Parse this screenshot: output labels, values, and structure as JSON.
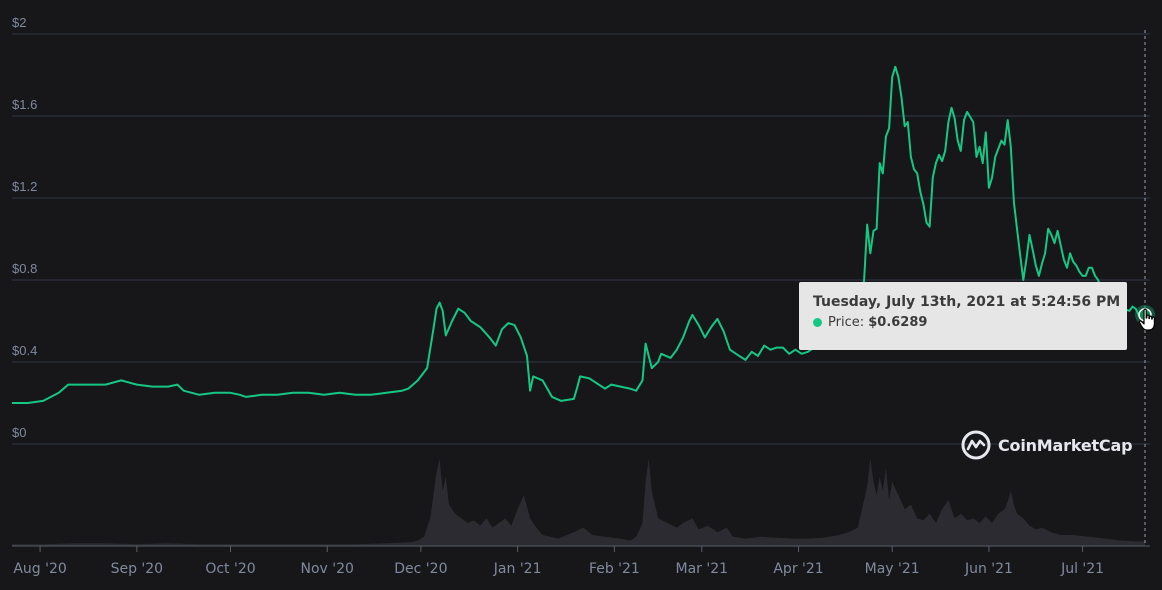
{
  "chart_data": {
    "type": "line",
    "title": "",
    "xlabel": "",
    "ylabel": "",
    "ylim": [
      0,
      2
    ],
    "y_ticks": [
      "$0",
      "$0.4",
      "$0.8",
      "$1.2",
      "$1.6",
      "$2"
    ],
    "y_tick_values": [
      0,
      0.4,
      0.8,
      1.2,
      1.6,
      2
    ],
    "x_ticks": [
      "Aug '20",
      "Sep '20",
      "Oct '20",
      "Nov '20",
      "Dec '20",
      "Jan '21",
      "Feb '21",
      "Mar '21",
      "Apr '21",
      "May '21",
      "Jun '21",
      "Jul '21"
    ],
    "grid": true,
    "series": [
      {
        "color": "#16c784",
        "points": [
          [
            0,
            0.2
          ],
          [
            5,
            0.2
          ],
          [
            10,
            0.21
          ],
          [
            15,
            0.25
          ],
          [
            18,
            0.29
          ],
          [
            25,
            0.29
          ],
          [
            30,
            0.29
          ],
          [
            35,
            0.31
          ],
          [
            40,
            0.29
          ],
          [
            45,
            0.28
          ],
          [
            50,
            0.28
          ],
          [
            53,
            0.29
          ],
          [
            55,
            0.26
          ],
          [
            60,
            0.24
          ],
          [
            65,
            0.25
          ],
          [
            70,
            0.25
          ],
          [
            73,
            0.24
          ],
          [
            75,
            0.23
          ],
          [
            80,
            0.24
          ],
          [
            85,
            0.24
          ],
          [
            90,
            0.25
          ],
          [
            95,
            0.25
          ],
          [
            100,
            0.24
          ],
          [
            105,
            0.25
          ],
          [
            110,
            0.24
          ],
          [
            115,
            0.24
          ],
          [
            120,
            0.25
          ],
          [
            125,
            0.26
          ],
          [
            127,
            0.27
          ],
          [
            130,
            0.31
          ],
          [
            133,
            0.37
          ],
          [
            135,
            0.56
          ],
          [
            136,
            0.66
          ],
          [
            137,
            0.69
          ],
          [
            138,
            0.65
          ],
          [
            139,
            0.53
          ],
          [
            141,
            0.6
          ],
          [
            143,
            0.66
          ],
          [
            145,
            0.64
          ],
          [
            147,
            0.6
          ],
          [
            150,
            0.57
          ],
          [
            153,
            0.52
          ],
          [
            155,
            0.48
          ],
          [
            157,
            0.56
          ],
          [
            159,
            0.59
          ],
          [
            161,
            0.58
          ],
          [
            163,
            0.52
          ],
          [
            165,
            0.43
          ],
          [
            166,
            0.26
          ],
          [
            167,
            0.33
          ],
          [
            170,
            0.31
          ],
          [
            173,
            0.23
          ],
          [
            176,
            0.21
          ],
          [
            180,
            0.22
          ],
          [
            181,
            0.27
          ],
          [
            182,
            0.33
          ],
          [
            185,
            0.32
          ],
          [
            188,
            0.29
          ],
          [
            190,
            0.27
          ],
          [
            192,
            0.29
          ],
          [
            195,
            0.28
          ],
          [
            198,
            0.27
          ],
          [
            200,
            0.26
          ],
          [
            202,
            0.31
          ],
          [
            203,
            0.49
          ],
          [
            205,
            0.37
          ],
          [
            207,
            0.4
          ],
          [
            208,
            0.44
          ],
          [
            211,
            0.42
          ],
          [
            213,
            0.46
          ],
          [
            215,
            0.52
          ],
          [
            217,
            0.6
          ],
          [
            218,
            0.63
          ],
          [
            220,
            0.58
          ],
          [
            222,
            0.52
          ],
          [
            224,
            0.57
          ],
          [
            226,
            0.61
          ],
          [
            228,
            0.55
          ],
          [
            230,
            0.46
          ],
          [
            233,
            0.43
          ],
          [
            235,
            0.41
          ],
          [
            237,
            0.45
          ],
          [
            239,
            0.43
          ],
          [
            241,
            0.48
          ],
          [
            243,
            0.46
          ],
          [
            245,
            0.47
          ],
          [
            247,
            0.47
          ],
          [
            249,
            0.44
          ],
          [
            251,
            0.46
          ],
          [
            253,
            0.44
          ],
          [
            255,
            0.45
          ],
          [
            257,
            0.47
          ],
          [
            260,
            0.47
          ],
          [
            262,
            0.53
          ],
          [
            264,
            0.55
          ],
          [
            266,
            0.51
          ],
          [
            267,
            0.49
          ],
          [
            269,
            0.56
          ],
          [
            271,
            0.56
          ],
          [
            273,
            0.8
          ],
          [
            274,
            1.07
          ],
          [
            275,
            0.93
          ],
          [
            276,
            1.04
          ],
          [
            277,
            1.05
          ],
          [
            278,
            1.37
          ],
          [
            279,
            1.32
          ],
          [
            280,
            1.5
          ],
          [
            281,
            1.54
          ],
          [
            282,
            1.79
          ],
          [
            283,
            1.84
          ],
          [
            284,
            1.79
          ],
          [
            285,
            1.69
          ],
          [
            286,
            1.55
          ],
          [
            287,
            1.57
          ],
          [
            288,
            1.4
          ],
          [
            289,
            1.34
          ],
          [
            290,
            1.32
          ],
          [
            291,
            1.23
          ],
          [
            292,
            1.17
          ],
          [
            293,
            1.08
          ],
          [
            294,
            1.06
          ],
          [
            295,
            1.3
          ],
          [
            296,
            1.37
          ],
          [
            297,
            1.41
          ],
          [
            298,
            1.38
          ],
          [
            299,
            1.43
          ],
          [
            300,
            1.57
          ],
          [
            301,
            1.64
          ],
          [
            302,
            1.59
          ],
          [
            303,
            1.48
          ],
          [
            304,
            1.43
          ],
          [
            305,
            1.58
          ],
          [
            306,
            1.62
          ],
          [
            308,
            1.57
          ],
          [
            309,
            1.4
          ],
          [
            310,
            1.45
          ],
          [
            311,
            1.37
          ],
          [
            312,
            1.52
          ],
          [
            313,
            1.25
          ],
          [
            314,
            1.3
          ],
          [
            315,
            1.4
          ],
          [
            317,
            1.48
          ],
          [
            318,
            1.46
          ],
          [
            319,
            1.58
          ],
          [
            320,
            1.45
          ],
          [
            321,
            1.18
          ],
          [
            322,
            1.05
          ],
          [
            323,
            0.92
          ],
          [
            324,
            0.8
          ],
          [
            325,
            0.9
          ],
          [
            326,
            1.02
          ],
          [
            327,
            0.95
          ],
          [
            328,
            0.87
          ],
          [
            329,
            0.82
          ],
          [
            330,
            0.88
          ],
          [
            331,
            0.93
          ],
          [
            332,
            1.05
          ],
          [
            333,
            1.02
          ],
          [
            334,
            0.98
          ],
          [
            335,
            1.04
          ],
          [
            336,
            0.97
          ],
          [
            337,
            0.9
          ],
          [
            338,
            0.86
          ],
          [
            339,
            0.93
          ],
          [
            340,
            0.89
          ],
          [
            341,
            0.87
          ],
          [
            342,
            0.84
          ],
          [
            343,
            0.82
          ],
          [
            344,
            0.82
          ],
          [
            345,
            0.86
          ],
          [
            346,
            0.86
          ],
          [
            347,
            0.82
          ],
          [
            348,
            0.8
          ],
          [
            349,
            0.74
          ],
          [
            350,
            0.72
          ],
          [
            351,
            0.66
          ],
          [
            352,
            0.6
          ],
          [
            353,
            0.55
          ],
          [
            354,
            0.64
          ],
          [
            356,
            0.66
          ],
          [
            358,
            0.65
          ],
          [
            359,
            0.67
          ],
          [
            360,
            0.66
          ],
          [
            361,
            0.63
          ],
          [
            362,
            0.62
          ],
          [
            363,
            0.63
          ]
        ]
      }
    ],
    "volume": {
      "color": "#2b2b31",
      "points": [
        [
          0,
          0.02
        ],
        [
          10,
          0.02
        ],
        [
          20,
          0.03
        ],
        [
          30,
          0.03
        ],
        [
          40,
          0.02
        ],
        [
          50,
          0.03
        ],
        [
          60,
          0.02
        ],
        [
          70,
          0.02
        ],
        [
          80,
          0.02
        ],
        [
          90,
          0.02
        ],
        [
          100,
          0.02
        ],
        [
          110,
          0.02
        ],
        [
          120,
          0.03
        ],
        [
          128,
          0.04
        ],
        [
          130,
          0.06
        ],
        [
          132,
          0.1
        ],
        [
          134,
          0.3
        ],
        [
          135,
          0.55
        ],
        [
          136,
          0.8
        ],
        [
          137,
          0.95
        ],
        [
          138,
          0.6
        ],
        [
          139,
          0.75
        ],
        [
          140,
          0.45
        ],
        [
          142,
          0.35
        ],
        [
          144,
          0.3
        ],
        [
          146,
          0.25
        ],
        [
          148,
          0.28
        ],
        [
          150,
          0.22
        ],
        [
          152,
          0.3
        ],
        [
          154,
          0.2
        ],
        [
          156,
          0.25
        ],
        [
          158,
          0.3
        ],
        [
          160,
          0.22
        ],
        [
          162,
          0.4
        ],
        [
          164,
          0.55
        ],
        [
          166,
          0.3
        ],
        [
          168,
          0.2
        ],
        [
          170,
          0.12
        ],
        [
          175,
          0.08
        ],
        [
          180,
          0.15
        ],
        [
          183,
          0.2
        ],
        [
          186,
          0.12
        ],
        [
          190,
          0.1
        ],
        [
          195,
          0.08
        ],
        [
          198,
          0.06
        ],
        [
          200,
          0.1
        ],
        [
          202,
          0.25
        ],
        [
          203,
          0.7
        ],
        [
          204,
          0.95
        ],
        [
          205,
          0.6
        ],
        [
          207,
          0.3
        ],
        [
          210,
          0.25
        ],
        [
          213,
          0.2
        ],
        [
          215,
          0.25
        ],
        [
          218,
          0.3
        ],
        [
          220,
          0.18
        ],
        [
          223,
          0.22
        ],
        [
          226,
          0.15
        ],
        [
          229,
          0.2
        ],
        [
          231,
          0.1
        ],
        [
          235,
          0.08
        ],
        [
          240,
          0.1
        ],
        [
          245,
          0.09
        ],
        [
          250,
          0.08
        ],
        [
          255,
          0.08
        ],
        [
          260,
          0.09
        ],
        [
          265,
          0.12
        ],
        [
          268,
          0.15
        ],
        [
          271,
          0.2
        ],
        [
          273,
          0.5
        ],
        [
          274,
          0.65
        ],
        [
          275,
          0.95
        ],
        [
          276,
          0.7
        ],
        [
          277,
          0.55
        ],
        [
          278,
          0.75
        ],
        [
          279,
          0.6
        ],
        [
          280,
          0.85
        ],
        [
          281,
          0.5
        ],
        [
          282,
          0.7
        ],
        [
          284,
          0.55
        ],
        [
          286,
          0.4
        ],
        [
          288,
          0.45
        ],
        [
          290,
          0.3
        ],
        [
          292,
          0.28
        ],
        [
          294,
          0.35
        ],
        [
          296,
          0.25
        ],
        [
          298,
          0.4
        ],
        [
          300,
          0.5
        ],
        [
          302,
          0.3
        ],
        [
          304,
          0.35
        ],
        [
          306,
          0.28
        ],
        [
          308,
          0.3
        ],
        [
          310,
          0.25
        ],
        [
          312,
          0.32
        ],
        [
          314,
          0.25
        ],
        [
          316,
          0.35
        ],
        [
          318,
          0.4
        ],
        [
          319,
          0.48
        ],
        [
          320,
          0.6
        ],
        [
          321,
          0.45
        ],
        [
          322,
          0.35
        ],
        [
          324,
          0.3
        ],
        [
          326,
          0.22
        ],
        [
          328,
          0.18
        ],
        [
          330,
          0.2
        ],
        [
          333,
          0.15
        ],
        [
          336,
          0.12
        ],
        [
          340,
          0.12
        ],
        [
          345,
          0.1
        ],
        [
          350,
          0.08
        ],
        [
          355,
          0.06
        ],
        [
          360,
          0.05
        ],
        [
          363,
          0.05
        ]
      ]
    },
    "tooltip": {
      "date": "Tuesday, July 13th, 2021 at 5:24:56 PM",
      "label": "Price:",
      "value": "$0.6289",
      "dot_color": "#16c784"
    },
    "hover_index": 363
  },
  "brand": {
    "name": "CoinMarketCap",
    "icon": "coinmarketcap-logo-icon"
  },
  "cursor": {
    "icon": "hand-pointer-icon"
  }
}
